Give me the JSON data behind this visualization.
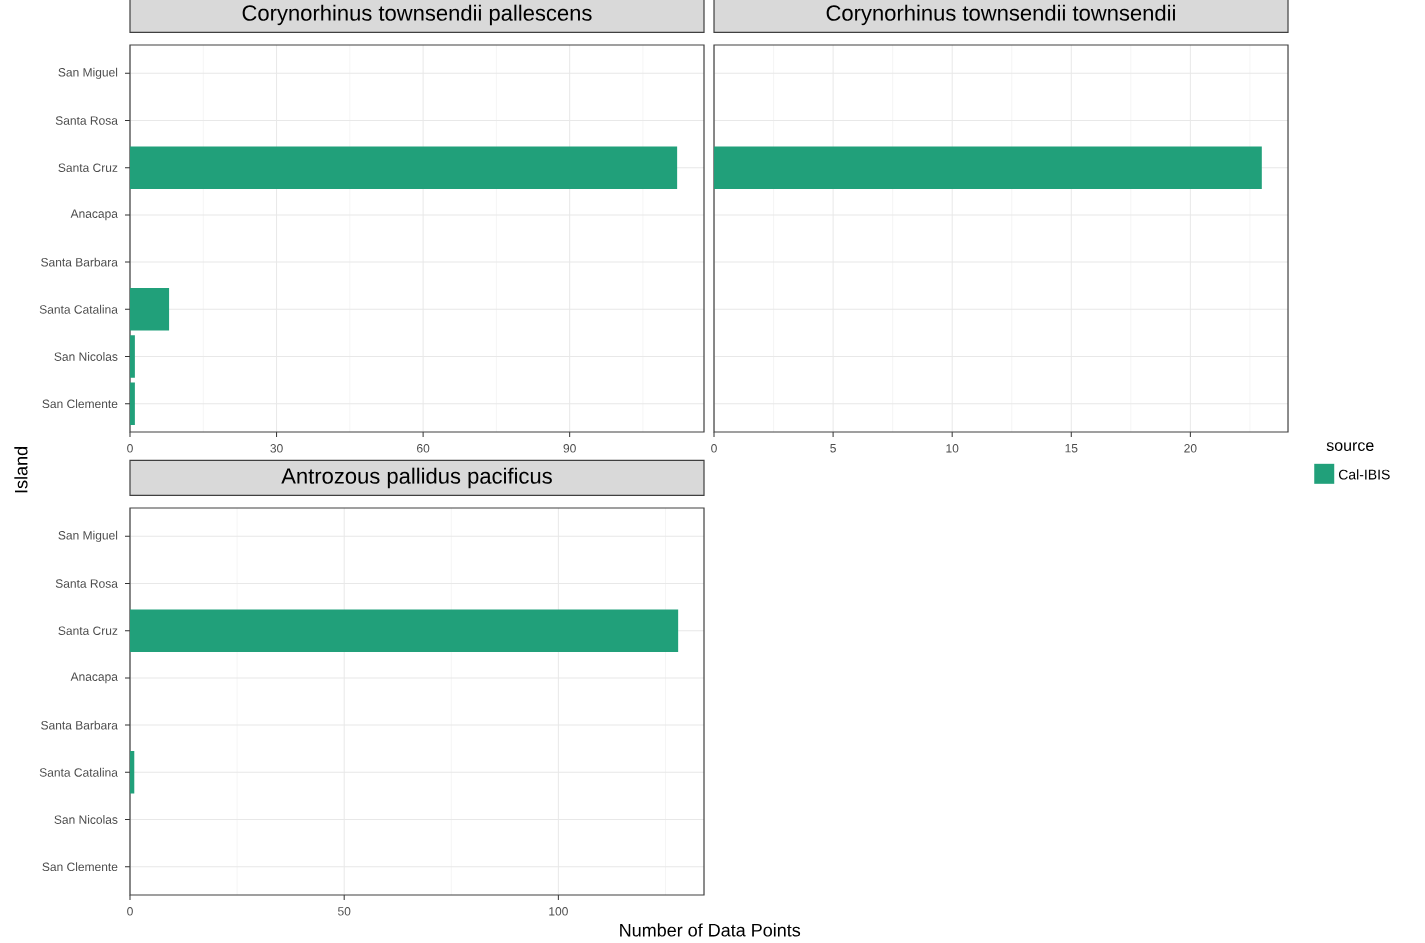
{
  "chart_data": [
    {
      "type": "bar",
      "orientation": "horizontal",
      "title": "Corynorhinus townsendii pallescens",
      "ylabel": "Island",
      "categories": [
        "San Miguel",
        "Santa Rosa",
        "Santa Cruz",
        "Anacapa",
        "Santa Barbara",
        "Santa Catalina",
        "San Nicolas",
        "San Clemente"
      ],
      "series": [
        {
          "color": "#21a07a",
          "values": [
            0,
            0,
            112,
            0,
            0,
            8,
            1,
            1
          ]
        }
      ],
      "xlim": [
        0,
        117.5
      ],
      "xticks": [
        0,
        {
          "value": 15,
          "label": null
        },
        30,
        {
          "value": 45,
          "label": null
        },
        60,
        {
          "value": 75,
          "label": null
        },
        90,
        {
          "value": 105,
          "label": null
        }
      ],
      "grid": true
    },
    {
      "type": "bar",
      "orientation": "horizontal",
      "title": "Corynorhinus townsendii townsendii",
      "legend_title": "source",
      "legend": "right",
      "categories": [
        null,
        null,
        null,
        null,
        null,
        null,
        null,
        null
      ],
      "series": [
        {
          "name": "Cal-IBIS",
          "color": "#21a07a",
          "values": [
            0,
            0,
            23,
            0,
            0,
            0,
            0,
            0
          ]
        }
      ],
      "xlim": [
        0,
        24.1
      ],
      "xticks": [
        0,
        {
          "value": 2.5,
          "label": null
        },
        5,
        {
          "value": 7.5,
          "label": null
        },
        10,
        {
          "value": 12.5,
          "label": null
        },
        15,
        {
          "value": 17.5,
          "label": null
        },
        20,
        {
          "value": 22.5,
          "label": null
        }
      ],
      "grid": true,
      "tick_labels": "x"
    },
    {
      "type": "bar",
      "orientation": "horizontal",
      "title": "Antrozous pallidus pacificus",
      "xlabel": "Number of Data Points",
      "categories": [
        "San Miguel",
        "Santa Rosa",
        "Santa Cruz",
        "Anacapa",
        "Santa Barbara",
        "Santa Catalina",
        "San Nicolas",
        "San Clemente"
      ],
      "series": [
        {
          "color": "#21a07a",
          "values": [
            0,
            0,
            128,
            0,
            0,
            1,
            0,
            0
          ]
        }
      ],
      "xlim": [
        0,
        134
      ],
      "xticks": [
        0,
        {
          "value": 25,
          "label": null
        },
        50,
        {
          "value": 75,
          "label": null
        },
        100,
        {
          "value": 125,
          "label": null
        }
      ],
      "grid": true
    }
  ]
}
